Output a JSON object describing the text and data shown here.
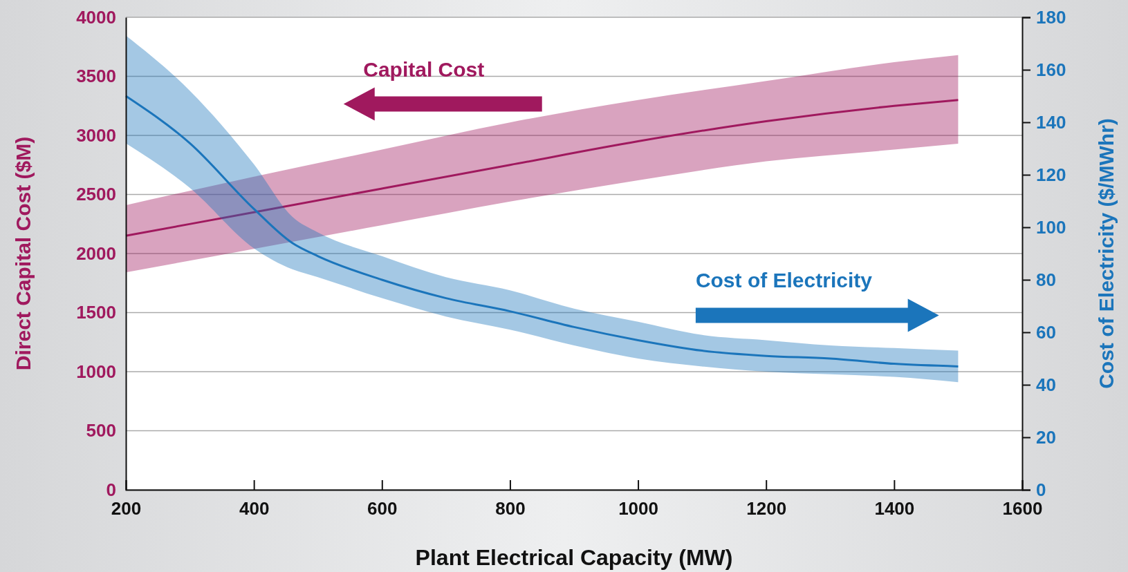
{
  "chart_data": {
    "type": "line",
    "xlabel": "Plant Electrical Capacity (MW)",
    "ylabel": "Direct Capital Cost ($M)",
    "y2label": "Cost of Electricity ($/MWhr)",
    "xlim": [
      200,
      1600
    ],
    "xticks": [
      200,
      400,
      600,
      800,
      1000,
      1200,
      1400,
      1600
    ],
    "ylim": [
      0,
      4000
    ],
    "yticks": [
      0,
      500,
      1000,
      1500,
      2000,
      2500,
      3000,
      3500,
      4000
    ],
    "y2lim": [
      0,
      180
    ],
    "y2ticks": [
      0,
      20,
      40,
      60,
      80,
      100,
      120,
      140,
      160,
      180
    ],
    "grid": "y",
    "marker": "none",
    "line_style": "solid",
    "series": [
      {
        "name": "Capital Cost",
        "color": "#a0195e",
        "x": [
          200,
          400,
          600,
          800,
          1000,
          1200,
          1400,
          1500
        ],
        "values": [
          2150,
          2350,
          2550,
          2750,
          2950,
          3120,
          3250,
          3300
        ],
        "lower": [
          1840,
          2040,
          2240,
          2440,
          2620,
          2780,
          2880,
          2930
        ],
        "upper": [
          2410,
          2650,
          2880,
          3110,
          3300,
          3460,
          3620,
          3680
        ]
      },
      {
        "name": "Cost of Electricity",
        "color": "#1b75bb",
        "axis": "y2",
        "x": [
          200,
          300,
          400,
          460,
          500,
          600,
          700,
          800,
          900,
          1000,
          1100,
          1200,
          1300,
          1400,
          1500
        ],
        "values": [
          150,
          132,
          107,
          94,
          89,
          80,
          73,
          68,
          62,
          57,
          53,
          51,
          50,
          48,
          47
        ],
        "lower": [
          132,
          115,
          92,
          84,
          81,
          73,
          66,
          61,
          55,
          50,
          47,
          45,
          44,
          43,
          41
        ],
        "upper": [
          173,
          152,
          124,
          104,
          98,
          89,
          81,
          76,
          69,
          64,
          59,
          57,
          55,
          54,
          53
        ]
      }
    ]
  }
}
